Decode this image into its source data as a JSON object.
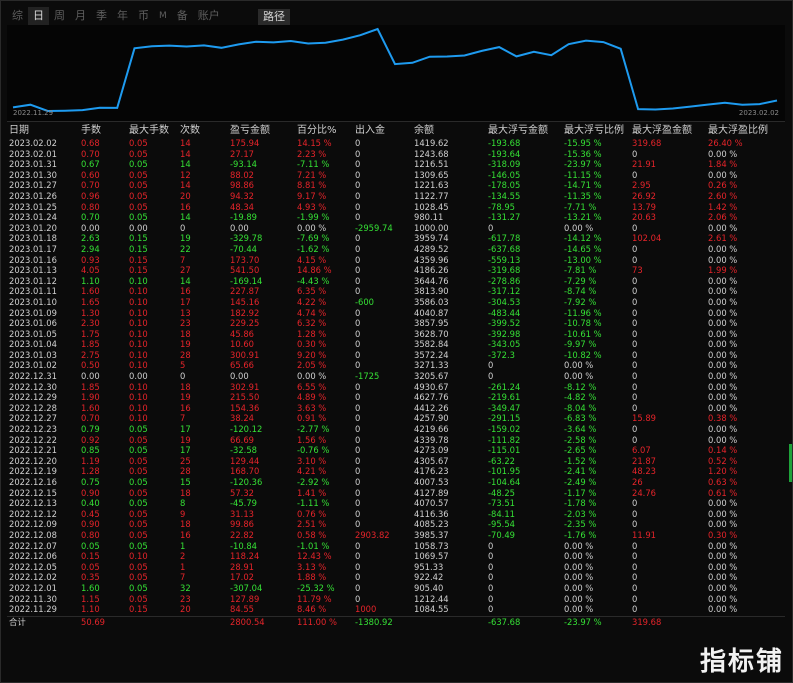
{
  "tabs": [
    "综",
    "日",
    "周",
    "月",
    "季",
    "年",
    "币",
    "M",
    "备",
    "账户"
  ],
  "active_tab_index": 1,
  "path_button": "路径",
  "chart": {
    "start_date": "2022.11.29",
    "end_date": "2023.02.02",
    "line_color": "#1e9bf0",
    "type": "line",
    "values": [
      1084.55,
      1212.44,
      905.4,
      922.42,
      951.33,
      1069.57,
      1058.73,
      3985.37,
      4085.23,
      4116.36,
      4070.57,
      4127.89,
      4007.53,
      4176.23,
      4305.67,
      4273.09,
      4339.78,
      4219.66,
      4257.9,
      4412.26,
      4627.76,
      4930.67,
      3205.67,
      3271.33,
      3572.24,
      3582.84,
      3628.7,
      3857.95,
      4040.87,
      3586.03,
      3813.9,
      3644.76,
      4186.26,
      4359.96,
      4289.52,
      3959.74,
      1000.0,
      980.11,
      1028.45,
      1122.77,
      1221.63,
      1309.65,
      1216.51,
      1243.68,
      1419.62
    ]
  },
  "colors": {
    "red": "#e5242a",
    "green": "#35e035",
    "white": "#d0d0d0",
    "accent": "#1e9bf0"
  },
  "headers": [
    "日期",
    "手数",
    "最大手数",
    "次数",
    "盈亏金额",
    "百分比%",
    "出入金",
    "余额",
    "最大浮亏金额",
    "最大浮亏比例",
    "最大浮盈金额",
    "最大浮盈比例"
  ],
  "rows": [
    [
      "2023.02.02",
      "0.68",
      "0.05",
      "14",
      "175.94",
      "14.15 %",
      "0",
      "1419.62",
      "-193.68",
      "-15.95 %",
      "319.68",
      "26.40 %",
      "r"
    ],
    [
      "2023.02.01",
      "0.70",
      "0.05",
      "14",
      "27.17",
      "2.23 %",
      "0",
      "1243.68",
      "-193.64",
      "-15.36 %",
      "0",
      "0.00 %",
      "r"
    ],
    [
      "2023.01.31",
      "0.67",
      "0.05",
      "14",
      "-93.14",
      "-7.11 %",
      "0",
      "1216.51",
      "-318.09",
      "-23.97 %",
      "21.91",
      "1.84 %",
      "g"
    ],
    [
      "2023.01.30",
      "0.60",
      "0.05",
      "12",
      "88.02",
      "7.21 %",
      "0",
      "1309.65",
      "-146.05",
      "-11.15 %",
      "0",
      "0.00 %",
      "r"
    ],
    [
      "2023.01.27",
      "0.70",
      "0.05",
      "14",
      "98.86",
      "8.81 %",
      "0",
      "1221.63",
      "-178.05",
      "-14.71 %",
      "2.95",
      "0.26 %",
      "r"
    ],
    [
      "2023.01.26",
      "0.96",
      "0.05",
      "20",
      "94.32",
      "9.17 %",
      "0",
      "1122.77",
      "-134.55",
      "-11.35 %",
      "26.92",
      "2.60 %",
      "r"
    ],
    [
      "2023.01.25",
      "0.80",
      "0.05",
      "16",
      "48.34",
      "4.93 %",
      "0",
      "1028.45",
      "-78.95",
      "-7.71 %",
      "13.79",
      "1.42 %",
      "r"
    ],
    [
      "2023.01.24",
      "0.70",
      "0.05",
      "14",
      "-19.89",
      "-1.99 %",
      "0",
      "980.11",
      "-131.27",
      "-13.21 %",
      "20.63",
      "2.06 %",
      "g"
    ],
    [
      "2023.01.20",
      "0.00",
      "0.00",
      "0",
      "0.00",
      "0.00 %",
      "-2959.74",
      "1000.00",
      "0",
      "0.00 %",
      "0",
      "0.00 %",
      "w"
    ],
    [
      "2023.01.18",
      "2.63",
      "0.15",
      "19",
      "-329.78",
      "-7.69 %",
      "0",
      "3959.74",
      "-617.78",
      "-14.12 %",
      "102.04",
      "2.61 %",
      "g"
    ],
    [
      "2023.01.17",
      "2.94",
      "0.15",
      "22",
      "-70.44",
      "-1.62 %",
      "0",
      "4289.52",
      "-637.68",
      "-14.65 %",
      "0",
      "0.00 %",
      "g"
    ],
    [
      "2023.01.16",
      "0.93",
      "0.15",
      "7",
      "173.70",
      "4.15 %",
      "0",
      "4359.96",
      "-559.13",
      "-13.00 %",
      "0",
      "0.00 %",
      "r"
    ],
    [
      "2023.01.13",
      "4.05",
      "0.15",
      "27",
      "541.50",
      "14.86 %",
      "0",
      "4186.26",
      "-319.68",
      "-7.81 %",
      "73",
      "1.99 %",
      "r"
    ],
    [
      "2023.01.12",
      "1.10",
      "0.10",
      "14",
      "-169.14",
      "-4.43 %",
      "0",
      "3644.76",
      "-278.86",
      "-7.29 %",
      "0",
      "0.00 %",
      "g"
    ],
    [
      "2023.01.11",
      "1.60",
      "0.10",
      "16",
      "227.87",
      "6.35 %",
      "0",
      "3813.90",
      "-317.12",
      "-8.74 %",
      "0",
      "0.00 %",
      "r"
    ],
    [
      "2023.01.10",
      "1.65",
      "0.10",
      "17",
      "145.16",
      "4.22 %",
      "-600",
      "3586.03",
      "-304.53",
      "-7.92 %",
      "0",
      "0.00 %",
      "r"
    ],
    [
      "2023.01.09",
      "1.30",
      "0.10",
      "13",
      "182.92",
      "4.74 %",
      "0",
      "4040.87",
      "-483.44",
      "-11.96 %",
      "0",
      "0.00 %",
      "r"
    ],
    [
      "2023.01.06",
      "2.30",
      "0.10",
      "23",
      "229.25",
      "6.32 %",
      "0",
      "3857.95",
      "-399.52",
      "-10.78 %",
      "0",
      "0.00 %",
      "r"
    ],
    [
      "2023.01.05",
      "1.75",
      "0.10",
      "18",
      "45.86",
      "1.28 %",
      "0",
      "3628.70",
      "-392.98",
      "-10.61 %",
      "0",
      "0.00 %",
      "r"
    ],
    [
      "2023.01.04",
      "1.85",
      "0.10",
      "19",
      "10.60",
      "0.30 %",
      "0",
      "3582.84",
      "-343.05",
      "-9.97 %",
      "0",
      "0.00 %",
      "r"
    ],
    [
      "2023.01.03",
      "2.75",
      "0.10",
      "28",
      "300.91",
      "9.20 %",
      "0",
      "3572.24",
      "-372.3",
      "-10.82 %",
      "0",
      "0.00 %",
      "r"
    ],
    [
      "2023.01.02",
      "0.50",
      "0.10",
      "5",
      "65.66",
      "2.05 %",
      "0",
      "3271.33",
      "0",
      "0.00 %",
      "0",
      "0.00 %",
      "r"
    ],
    [
      "2022.12.31",
      "0.00",
      "0.00",
      "0",
      "0.00",
      "0.00 %",
      "-1725",
      "3205.67",
      "0",
      "0.00 %",
      "0",
      "0.00 %",
      "w"
    ],
    [
      "2022.12.30",
      "1.85",
      "0.10",
      "18",
      "302.91",
      "6.55 %",
      "0",
      "4930.67",
      "-261.24",
      "-8.12 %",
      "0",
      "0.00 %",
      "r"
    ],
    [
      "2022.12.29",
      "1.90",
      "0.10",
      "19",
      "215.50",
      "4.89 %",
      "0",
      "4627.76",
      "-219.61",
      "-4.82 %",
      "0",
      "0.00 %",
      "r"
    ],
    [
      "2022.12.28",
      "1.60",
      "0.10",
      "16",
      "154.36",
      "3.63 %",
      "0",
      "4412.26",
      "-349.47",
      "-8.04 %",
      "0",
      "0.00 %",
      "r"
    ],
    [
      "2022.12.27",
      "0.70",
      "0.10",
      "7",
      "38.24",
      "0.91 %",
      "0",
      "4257.90",
      "-291.15",
      "-6.83 %",
      "15.89",
      "0.38 %",
      "r"
    ],
    [
      "2022.12.23",
      "0.79",
      "0.05",
      "17",
      "-120.12",
      "-2.77 %",
      "0",
      "4219.66",
      "-159.02",
      "-3.64 %",
      "0",
      "0.00 %",
      "g"
    ],
    [
      "2022.12.22",
      "0.92",
      "0.05",
      "19",
      "66.69",
      "1.56 %",
      "0",
      "4339.78",
      "-111.82",
      "-2.58 %",
      "0",
      "0.00 %",
      "r"
    ],
    [
      "2022.12.21",
      "0.85",
      "0.05",
      "17",
      "-32.58",
      "-0.76 %",
      "0",
      "4273.09",
      "-115.01",
      "-2.65 %",
      "6.07",
      "0.14 %",
      "g"
    ],
    [
      "2022.12.20",
      "1.19",
      "0.05",
      "25",
      "129.44",
      "3.10 %",
      "0",
      "4305.67",
      "-63.22",
      "-1.52 %",
      "21.87",
      "0.52 %",
      "r"
    ],
    [
      "2022.12.19",
      "1.28",
      "0.05",
      "28",
      "168.70",
      "4.21 %",
      "0",
      "4176.23",
      "-101.95",
      "-2.41 %",
      "48.23",
      "1.20 %",
      "r"
    ],
    [
      "2022.12.16",
      "0.75",
      "0.05",
      "15",
      "-120.36",
      "-2.92 %",
      "0",
      "4007.53",
      "-104.64",
      "-2.49 %",
      "26",
      "0.63 %",
      "g"
    ],
    [
      "2022.12.15",
      "0.90",
      "0.05",
      "18",
      "57.32",
      "1.41 %",
      "0",
      "4127.89",
      "-48.25",
      "-1.17 %",
      "24.76",
      "0.61 %",
      "r"
    ],
    [
      "2022.12.13",
      "0.40",
      "0.05",
      "8",
      "-45.79",
      "-1.11 %",
      "0",
      "4070.57",
      "-73.51",
      "-1.78 %",
      "0",
      "0.00 %",
      "g"
    ],
    [
      "2022.12.12",
      "0.45",
      "0.05",
      "9",
      "31.13",
      "0.76 %",
      "0",
      "4116.36",
      "-84.11",
      "-2.03 %",
      "0",
      "0.00 %",
      "r"
    ],
    [
      "2022.12.09",
      "0.90",
      "0.05",
      "18",
      "99.86",
      "2.51 %",
      "0",
      "4085.23",
      "-95.54",
      "-2.35 %",
      "0",
      "0.00 %",
      "r"
    ],
    [
      "2022.12.08",
      "0.80",
      "0.05",
      "16",
      "22.82",
      "0.58 %",
      "2903.82",
      "3985.37",
      "-70.49",
      "-1.76 %",
      "11.91",
      "0.30 %",
      "r"
    ],
    [
      "2022.12.07",
      "0.05",
      "0.05",
      "1",
      "-10.84",
      "-1.01 %",
      "0",
      "1058.73",
      "0",
      "0.00 %",
      "0",
      "0.00 %",
      "g"
    ],
    [
      "2022.12.06",
      "0.15",
      "0.10",
      "2",
      "118.24",
      "12.43 %",
      "0",
      "1069.57",
      "0",
      "0.00 %",
      "0",
      "0.00 %",
      "r"
    ],
    [
      "2022.12.05",
      "0.05",
      "0.05",
      "1",
      "28.91",
      "3.13 %",
      "0",
      "951.33",
      "0",
      "0.00 %",
      "0",
      "0.00 %",
      "r"
    ],
    [
      "2022.12.02",
      "0.35",
      "0.05",
      "7",
      "17.02",
      "1.88 %",
      "0",
      "922.42",
      "0",
      "0.00 %",
      "0",
      "0.00 %",
      "r"
    ],
    [
      "2022.12.01",
      "1.60",
      "0.05",
      "32",
      "-307.04",
      "-25.32 %",
      "0",
      "905.40",
      "0",
      "0.00 %",
      "0",
      "0.00 %",
      "g"
    ],
    [
      "2022.11.30",
      "1.15",
      "0.05",
      "23",
      "127.89",
      "11.79 %",
      "0",
      "1212.44",
      "0",
      "0.00 %",
      "0",
      "0.00 %",
      "r"
    ],
    [
      "2022.11.29",
      "1.10",
      "0.15",
      "20",
      "84.55",
      "8.46 %",
      "1000",
      "1084.55",
      "0",
      "0.00 %",
      "0",
      "0.00 %",
      "r"
    ]
  ],
  "total": [
    "合计",
    "50.69",
    "",
    "",
    "2800.54",
    "111.00 %",
    "-1380.92",
    "",
    "-637.68",
    "-23.97 %",
    "319.68",
    ""
  ],
  "watermark": "指标铺"
}
